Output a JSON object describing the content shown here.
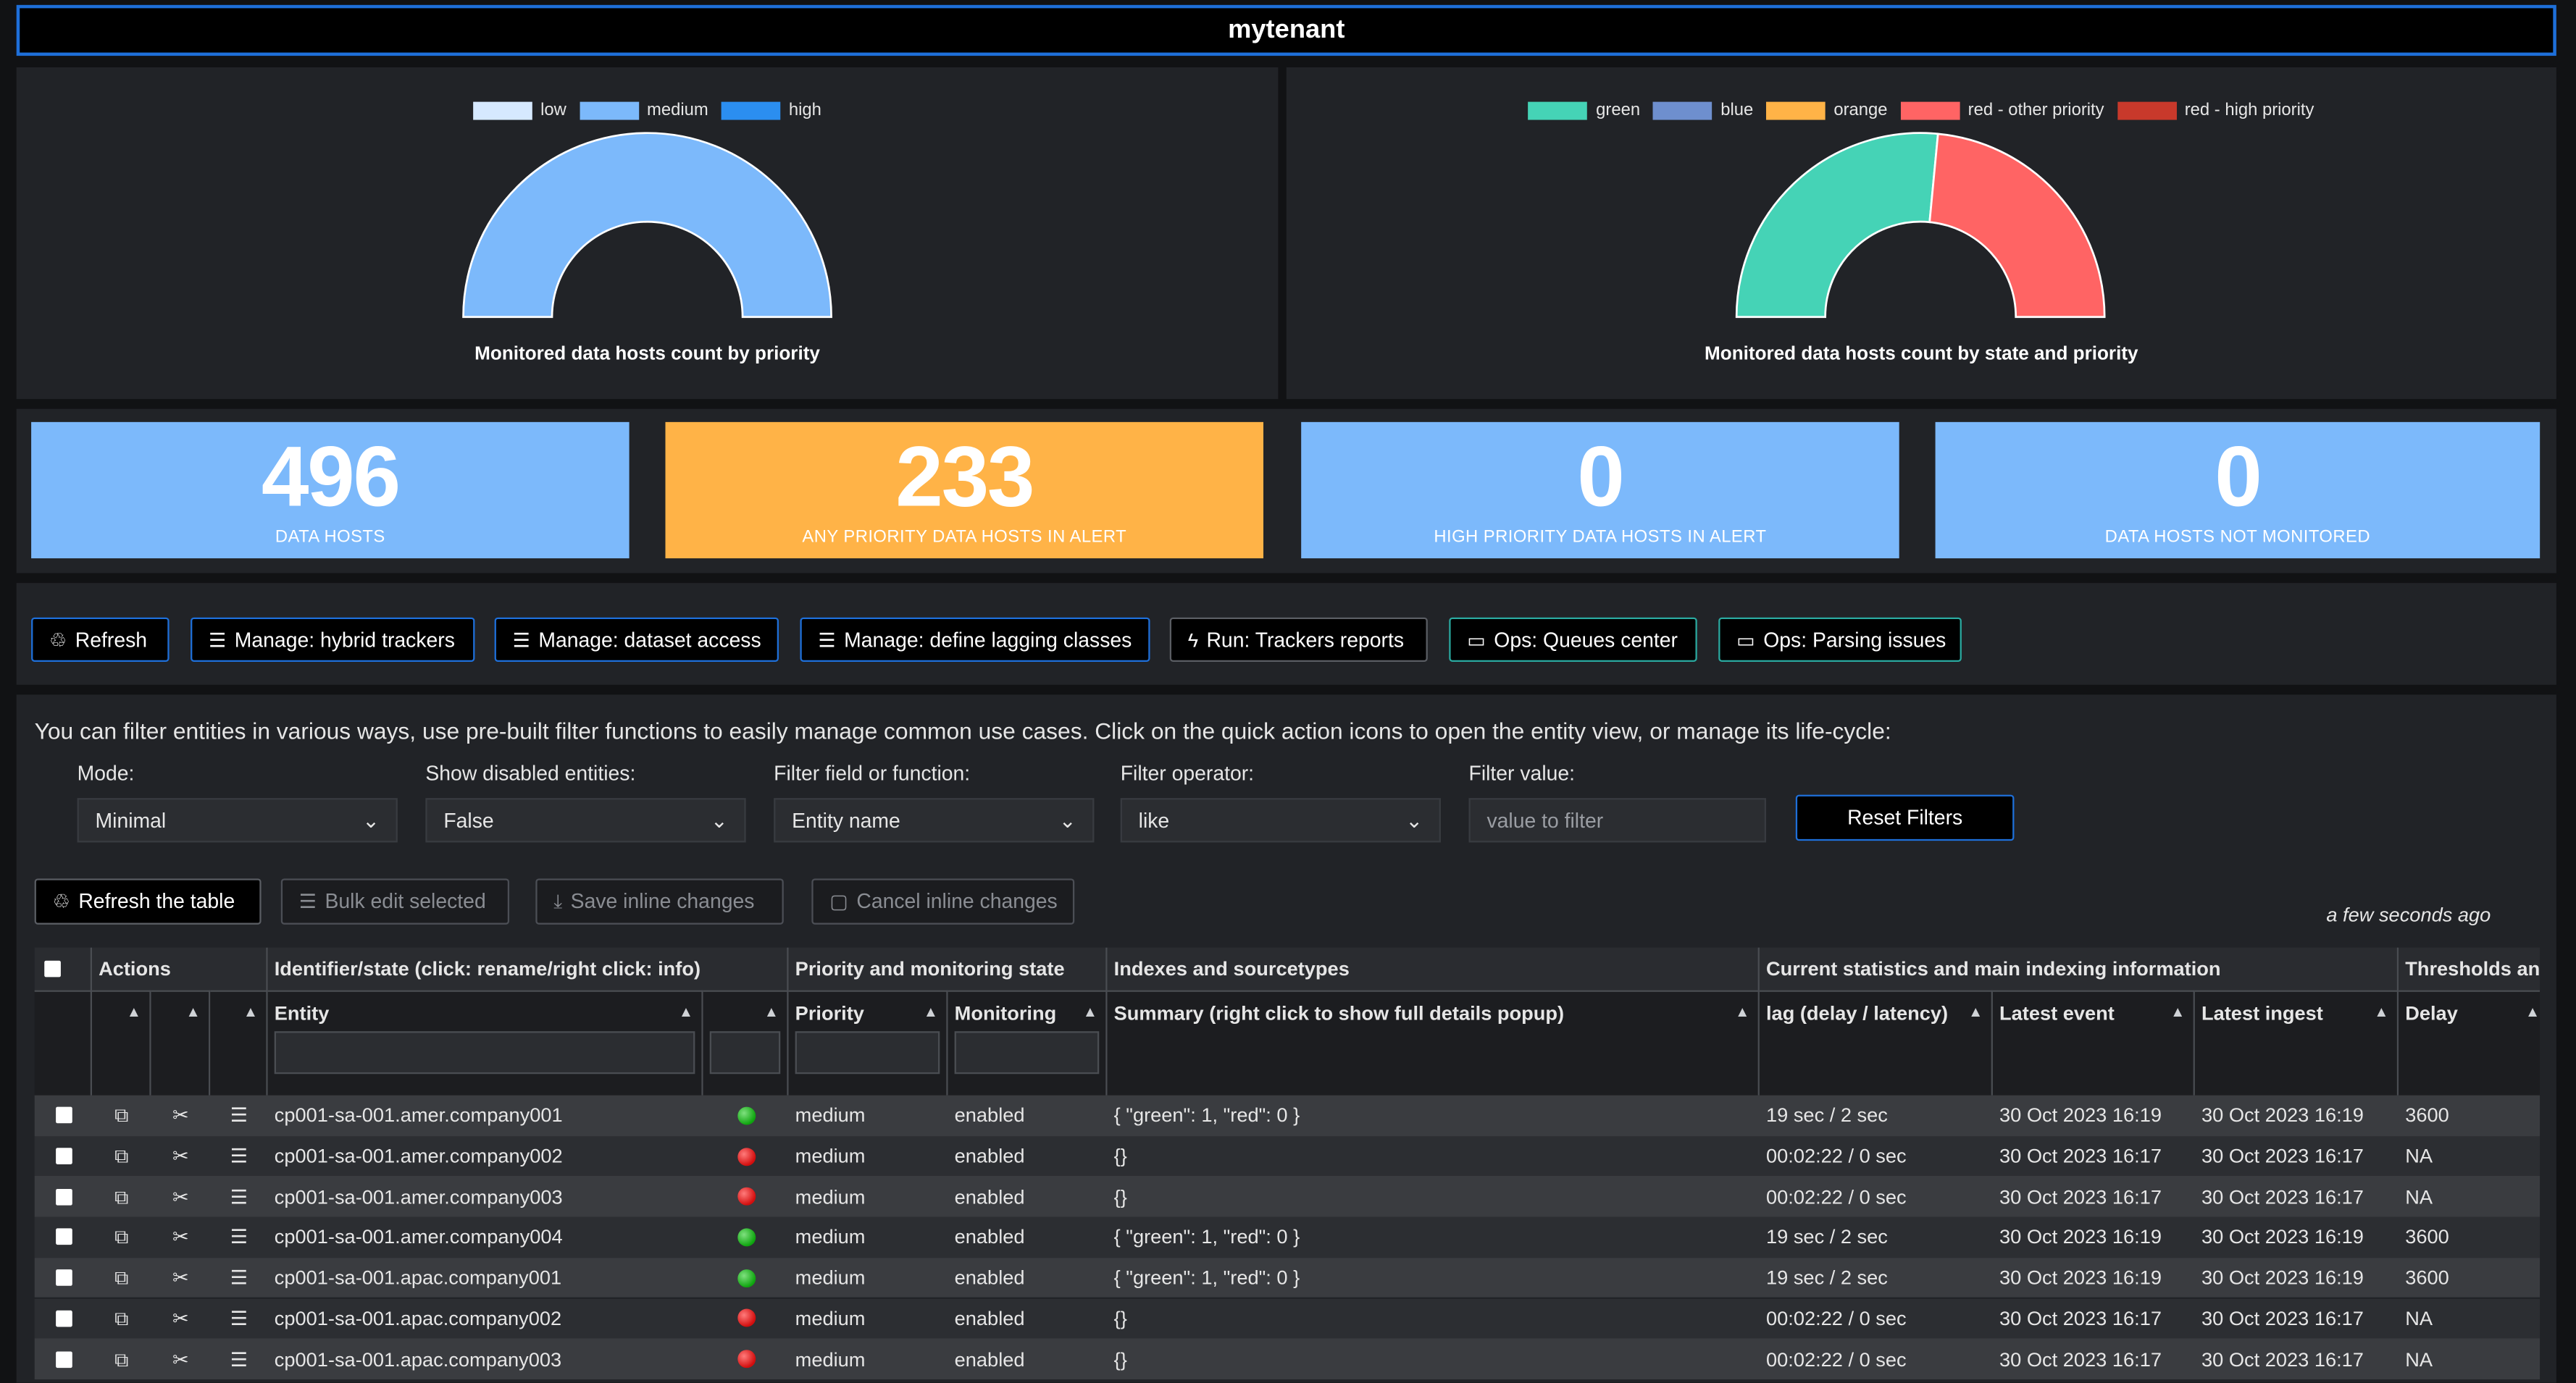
{
  "tenant": "mytenant",
  "colors": {
    "blue_accent": "#1e6fd9",
    "kpi_blue": "#7cb9fb",
    "kpi_orange": "#ffb347",
    "status_green": "#0ea50e",
    "status_red": "#d20d0d"
  },
  "chart_data": [
    {
      "type": "pie",
      "title": "Monitored data hosts count by priority",
      "legend": [
        "low",
        "medium",
        "high"
      ],
      "legend_colors": [
        "#d6e9ff",
        "#7cb9fb",
        "#2b8ef0"
      ],
      "values": [
        0,
        496,
        0
      ],
      "legend_position": "top"
    },
    {
      "type": "pie",
      "title": "Monitored data hosts count by state and priority",
      "legend": [
        "green",
        "blue",
        "orange",
        "red - other priority",
        "red - high priority"
      ],
      "legend_colors": [
        "#45d3b6",
        "#6e8fce",
        "#ffb347",
        "#ff6464",
        "#c8392b"
      ],
      "values": [
        263,
        0,
        0,
        233,
        0
      ],
      "legend_position": "top"
    }
  ],
  "kpis": [
    {
      "value": "496",
      "label": "DATA HOSTS"
    },
    {
      "value": "233",
      "label": "ANY PRIORITY DATA HOSTS IN ALERT"
    },
    {
      "value": "0",
      "label": "HIGH PRIORITY DATA HOSTS IN ALERT"
    },
    {
      "value": "0",
      "label": "DATA HOSTS NOT MONITORED"
    }
  ],
  "toolbar": {
    "refresh": "Refresh",
    "hybrid": "Manage: hybrid trackers",
    "dataset": "Manage: dataset access",
    "lagging": "Manage: define lagging classes",
    "reports": "Run: Trackers reports",
    "queues": "Ops: Queues center",
    "parsing": "Ops: Parsing issues"
  },
  "help_text": "You can filter entities in various ways, use pre-built filter functions to easily manage common use cases. Click on the quick action icons to open the entity view, or manage its life-cycle:",
  "filters": {
    "mode_label": "Mode:",
    "mode_value": "Minimal",
    "disabled_label": "Show disabled entities:",
    "disabled_value": "False",
    "field_label": "Filter field or function:",
    "field_value": "Entity name",
    "operator_label": "Filter operator:",
    "operator_value": "like",
    "value_label": "Filter value:",
    "value_placeholder": "value to filter",
    "reset": "Reset Filters"
  },
  "table_actions": {
    "refresh": "Refresh the table",
    "bulk": "Bulk edit selected",
    "save": "Save inline changes",
    "cancel": "Cancel inline changes",
    "updated": "a few seconds ago"
  },
  "table": {
    "groups": [
      "Actions",
      "Identifier/state (click: rename/right click: info)",
      "Priority and monitoring state",
      "Indexes and sourcetypes",
      "Current statistics and main indexing information",
      "Thresholds an"
    ],
    "columns": {
      "entity": "Entity",
      "priority": "Priority",
      "monitoring": "Monitoring",
      "summary": "Summary (right click to show full details popup)",
      "lag": "lag (delay / latency)",
      "latest_event": "Latest event",
      "latest_ingest": "Latest ingest",
      "delay": "Delay"
    },
    "rows": [
      {
        "entity": "cp001-sa-001.amer.company001",
        "state": "green",
        "priority": "medium",
        "monitoring": "enabled",
        "summary": "{ \"green\": 1, \"red\": 0 }",
        "lag": "19 sec / 2 sec",
        "latest_event": "30 Oct 2023 16:19",
        "latest_ingest": "30 Oct 2023 16:19",
        "delay": "3600"
      },
      {
        "entity": "cp001-sa-001.amer.company002",
        "state": "red",
        "priority": "medium",
        "monitoring": "enabled",
        "summary": "{}",
        "lag": "00:02:22 / 0 sec",
        "latest_event": "30 Oct 2023 16:17",
        "latest_ingest": "30 Oct 2023 16:17",
        "delay": "NA"
      },
      {
        "entity": "cp001-sa-001.amer.company003",
        "state": "red",
        "priority": "medium",
        "monitoring": "enabled",
        "summary": "{}",
        "lag": "00:02:22 / 0 sec",
        "latest_event": "30 Oct 2023 16:17",
        "latest_ingest": "30 Oct 2023 16:17",
        "delay": "NA"
      },
      {
        "entity": "cp001-sa-001.amer.company004",
        "state": "green",
        "priority": "medium",
        "monitoring": "enabled",
        "summary": "{ \"green\": 1, \"red\": 0 }",
        "lag": "19 sec / 2 sec",
        "latest_event": "30 Oct 2023 16:19",
        "latest_ingest": "30 Oct 2023 16:19",
        "delay": "3600"
      },
      {
        "entity": "cp001-sa-001.apac.company001",
        "state": "green",
        "priority": "medium",
        "monitoring": "enabled",
        "summary": "{ \"green\": 1, \"red\": 0 }",
        "lag": "19 sec / 2 sec",
        "latest_event": "30 Oct 2023 16:19",
        "latest_ingest": "30 Oct 2023 16:19",
        "delay": "3600"
      },
      {
        "entity": "cp001-sa-001.apac.company002",
        "state": "red",
        "priority": "medium",
        "monitoring": "enabled",
        "summary": "{}",
        "lag": "00:02:22 / 0 sec",
        "latest_event": "30 Oct 2023 16:17",
        "latest_ingest": "30 Oct 2023 16:17",
        "delay": "NA"
      },
      {
        "entity": "cp001-sa-001.apac.company003",
        "state": "red",
        "priority": "medium",
        "monitoring": "enabled",
        "summary": "{}",
        "lag": "00:02:22 / 0 sec",
        "latest_event": "30 Oct 2023 16:17",
        "latest_ingest": "30 Oct 2023 16:17",
        "delay": "NA"
      }
    ]
  }
}
